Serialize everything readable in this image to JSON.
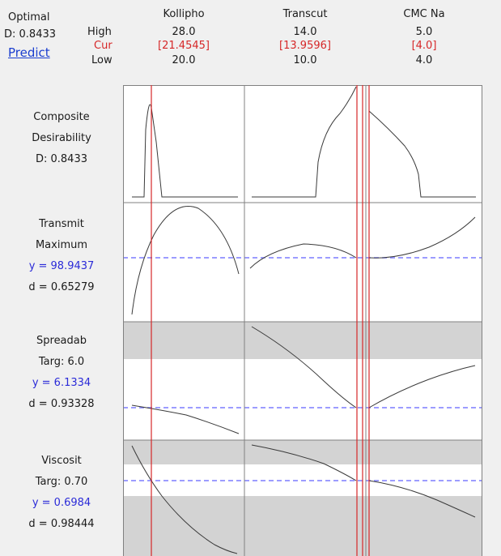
{
  "optimal": {
    "title": "Optimal",
    "d_value": "D: 0.8433",
    "predict_link": "Predict"
  },
  "legend": {
    "high": "High",
    "cur": "Cur",
    "low": "Low"
  },
  "factors": [
    {
      "name": "Kollipho",
      "high": "28.0",
      "cur": "[21.4545]",
      "low": "20.0"
    },
    {
      "name": "Transcut",
      "high": "14.0",
      "cur": "[13.9596]",
      "low": "10.0"
    },
    {
      "name": "CMC Na",
      "high": "5.0",
      "cur": "[4.0]",
      "low": "4.0"
    }
  ],
  "responses": [
    {
      "line1": "Composite",
      "line2": "Desirability",
      "line3": "D: 0.8433",
      "line4": ""
    },
    {
      "line1": "Transmit",
      "line2": "Maximum",
      "line3": "y = 98.9437",
      "line4": "d = 0.65279"
    },
    {
      "line1": "Spreadab",
      "line2": "Targ: 6.0",
      "line3": "y = 6.1334",
      "line4": "d = 0.93328"
    },
    {
      "line1": "Viscosit",
      "line2": "Targ: 0.70",
      "line3": "y = 0.6984",
      "line4": "d = 0.98444"
    }
  ],
  "colors": {
    "background": "#f0f0f0",
    "panel": "#ffffff",
    "shaded": "#d3d3d3",
    "current_line": "#d62728",
    "ref_dash": "#7b7bff",
    "curve": "#3a3a3a"
  }
}
